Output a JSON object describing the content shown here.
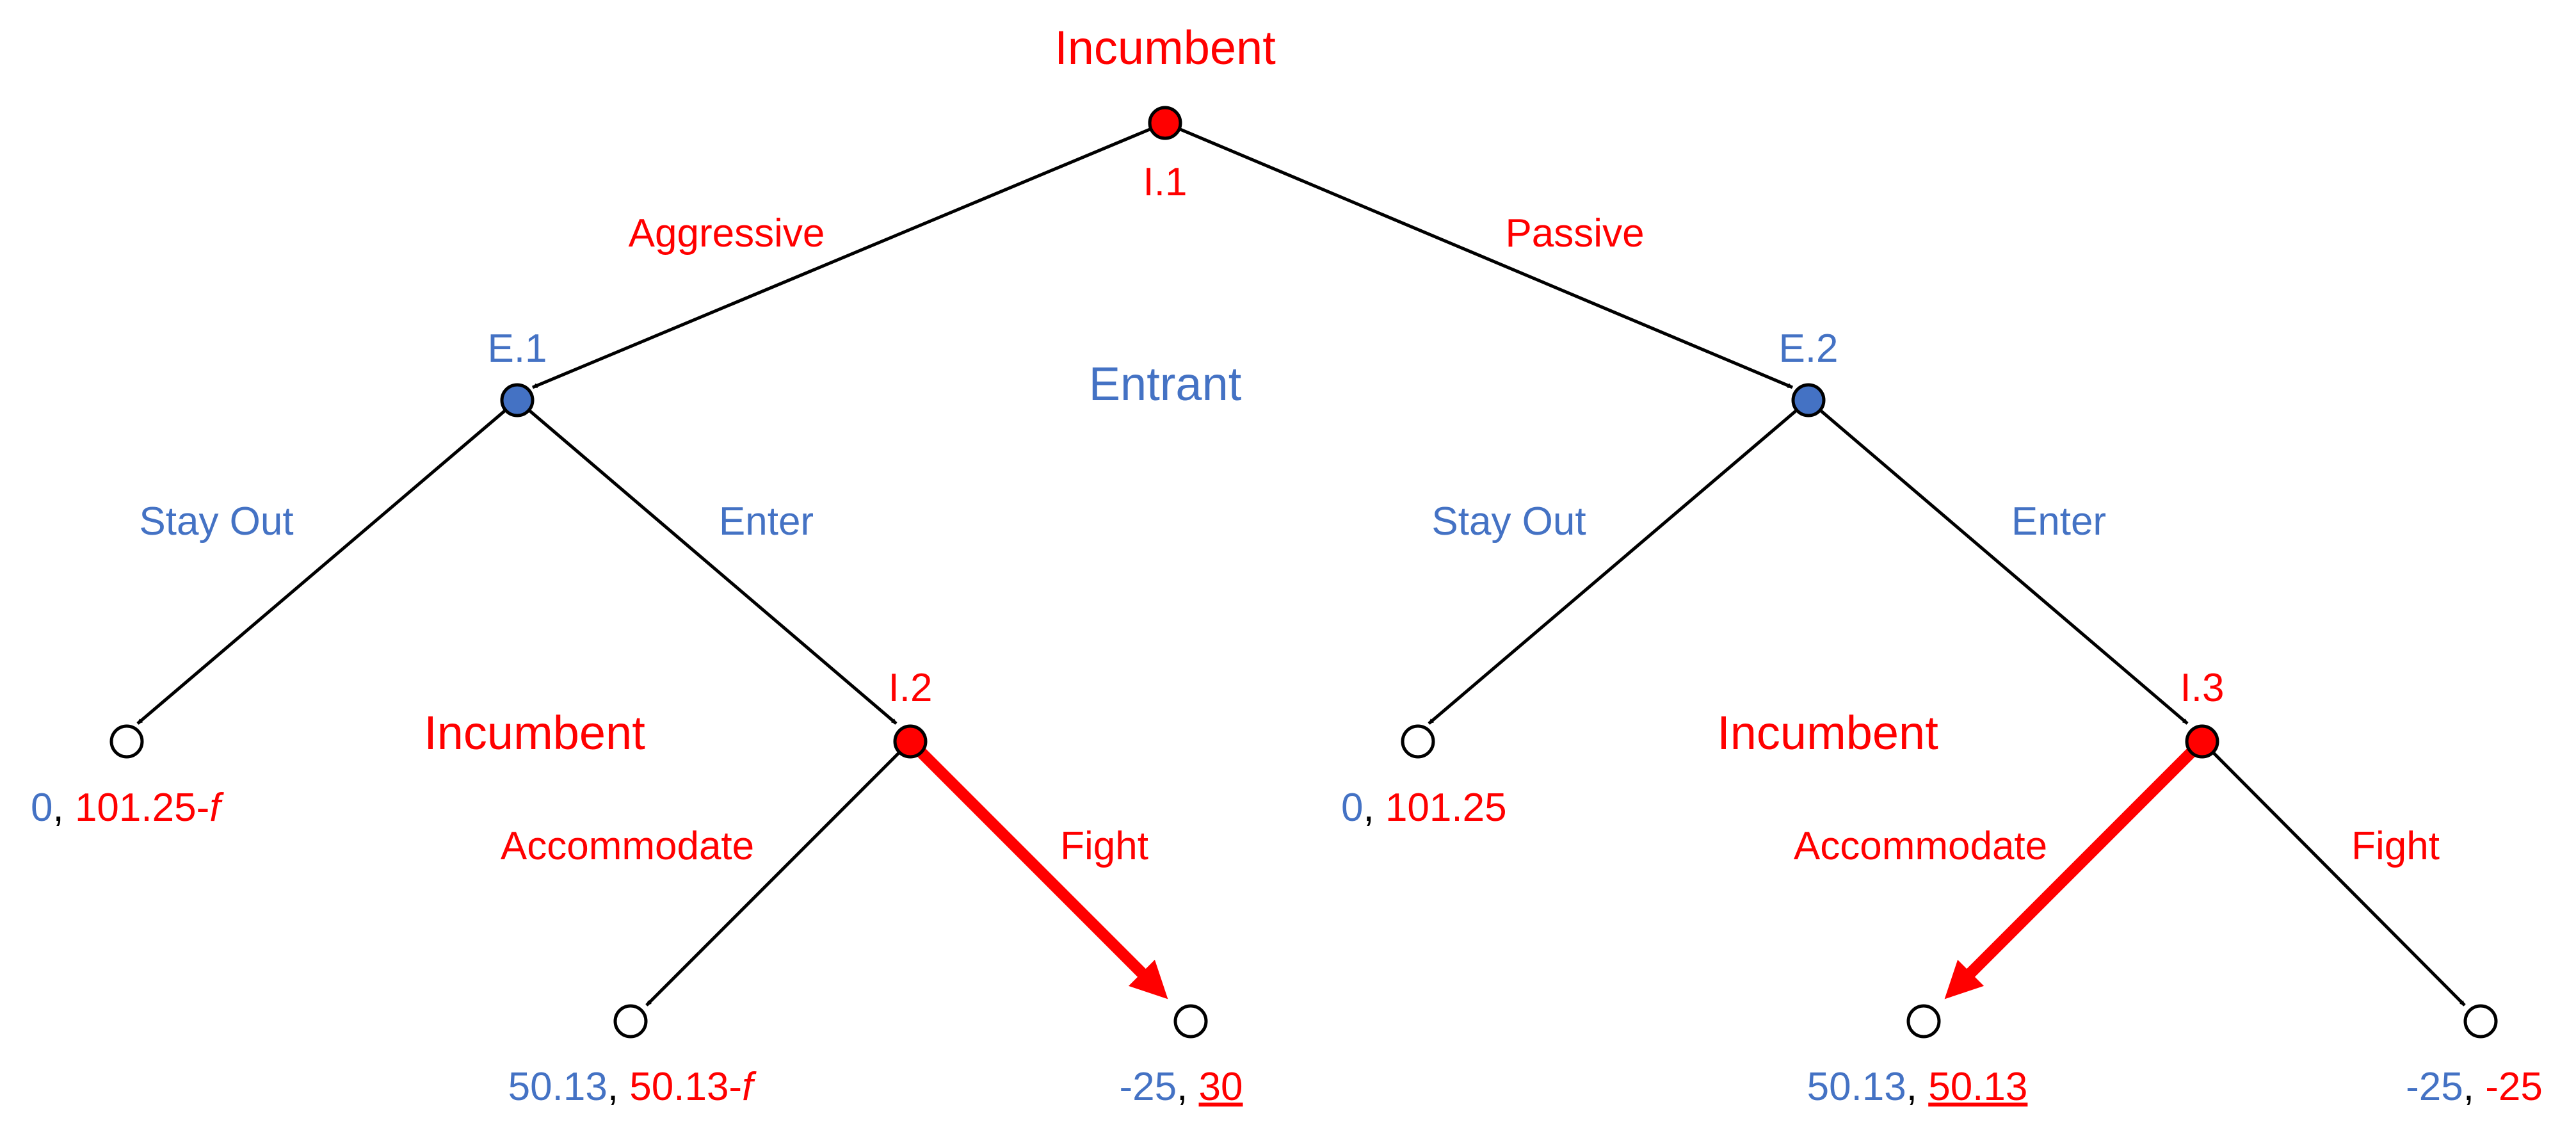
{
  "colors": {
    "incumbent": "#FF0000",
    "entrant": "#4472C4",
    "edge": "#000000",
    "terminal_fill": "#FFFFFF"
  },
  "players": {
    "incumbent_top": "Incumbent",
    "entrant": "Entrant",
    "incumbent_left": "Incumbent",
    "incumbent_right": "Incumbent"
  },
  "nodes": {
    "i1": "I.1",
    "e1": "E.1",
    "e2": "E.2",
    "i2": "I.2",
    "i3": "I.3"
  },
  "actions": {
    "aggressive": "Aggressive",
    "passive": "Passive",
    "e1_stay_out": "Stay Out",
    "e1_enter": "Enter",
    "e2_stay_out": "Stay Out",
    "e2_enter": "Enter",
    "i2_accommodate": "Accommodate",
    "i2_fight": "Fight",
    "i3_accommodate": "Accommodate",
    "i3_fight": "Fight"
  },
  "payoffs": {
    "t1": {
      "entrant": "0",
      "sep": ", ",
      "incumbent": "101.25-",
      "suffix": "f"
    },
    "t2": {
      "entrant": "50.13",
      "sep": ", ",
      "incumbent": "50.13-",
      "suffix": "f"
    },
    "t3": {
      "entrant": "-25",
      "sep": ", ",
      "incumbent": "30"
    },
    "t4": {
      "entrant": "0",
      "sep": ", ",
      "incumbent": "101.25"
    },
    "t5": {
      "entrant": "50.13",
      "sep": ", ",
      "incumbent": "50.13"
    },
    "t6": {
      "entrant": "-25",
      "sep": ", ",
      "incumbent": "-25"
    }
  }
}
